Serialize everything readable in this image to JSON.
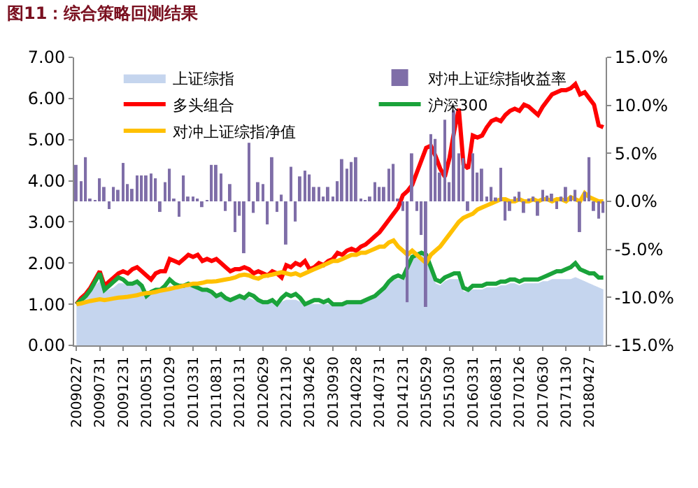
{
  "chart_data": {
    "type": "line",
    "title": "图11：综合策略回测结果",
    "categories": [
      "20090227",
      null,
      null,
      null,
      null,
      "20090731",
      null,
      null,
      null,
      null,
      "20091231",
      null,
      null,
      null,
      null,
      "20100531",
      null,
      null,
      null,
      null,
      "20101029",
      null,
      null,
      null,
      null,
      "20110331",
      null,
      null,
      null,
      null,
      "20110831",
      null,
      null,
      null,
      null,
      "20120131",
      null,
      null,
      null,
      null,
      "20120629",
      null,
      null,
      null,
      null,
      "20121130",
      null,
      null,
      null,
      null,
      "20130426",
      null,
      null,
      null,
      null,
      "20130930",
      null,
      null,
      null,
      null,
      "20140228",
      null,
      null,
      null,
      null,
      "20140731",
      null,
      null,
      null,
      null,
      "20141231",
      null,
      null,
      null,
      null,
      "20150529",
      null,
      null,
      null,
      null,
      "20151030",
      null,
      null,
      null,
      null,
      "20160331",
      null,
      null,
      null,
      null,
      "20160831",
      null,
      null,
      null,
      null,
      "20170126",
      null,
      null,
      null,
      null,
      "20170630",
      null,
      null,
      null,
      null,
      "20171130",
      null,
      null,
      null,
      null,
      "20180427",
      null,
      null,
      null
    ],
    "series": [
      {
        "name": "上证综指",
        "type": "area",
        "color": "#c5d5ee",
        "values": [
          1.0,
          1.1,
          1.15,
          1.3,
          1.45,
          1.55,
          1.3,
          1.35,
          1.4,
          1.5,
          1.5,
          1.45,
          1.45,
          1.5,
          1.4,
          1.2,
          1.25,
          1.3,
          1.3,
          1.35,
          1.45,
          1.4,
          1.4,
          1.4,
          1.45,
          1.4,
          1.35,
          1.3,
          1.3,
          1.25,
          1.2,
          1.2,
          1.15,
          1.1,
          1.1,
          1.15,
          1.1,
          1.15,
          1.1,
          1.05,
          1.0,
          1.0,
          1.05,
          0.95,
          1.05,
          1.1,
          1.1,
          1.1,
          1.05,
          0.95,
          1.0,
          1.0,
          1.0,
          1.0,
          1.0,
          0.95,
          0.95,
          0.95,
          1.0,
          1.0,
          1.0,
          1.0,
          1.05,
          1.1,
          1.15,
          1.25,
          1.35,
          1.5,
          1.6,
          1.6,
          1.6,
          1.8,
          2.1,
          2.2,
          2.25,
          2.15,
          1.8,
          1.5,
          1.45,
          1.55,
          1.6,
          1.6,
          1.6,
          1.3,
          1.3,
          1.35,
          1.35,
          1.35,
          1.4,
          1.4,
          1.4,
          1.45,
          1.45,
          1.5,
          1.5,
          1.45,
          1.5,
          1.5,
          1.5,
          1.5,
          1.55,
          1.55,
          1.6,
          1.6,
          1.6,
          1.6,
          1.6,
          1.65,
          1.6,
          1.55,
          1.5,
          1.45,
          1.4,
          1.35
        ]
      },
      {
        "name": "对冲上证综指收益率",
        "type": "bar",
        "axis": "y2",
        "color": "#7f6ea8",
        "values": [
          3.8,
          2.1,
          4.6,
          0.2,
          0.1,
          2.4,
          1.5,
          -0.8,
          1.5,
          1.2,
          4.0,
          1.8,
          1.3,
          2.7,
          2.7,
          2.7,
          2.9,
          2.4,
          -1.1,
          2.0,
          3.4,
          0.2,
          -1.6,
          2.7,
          0.5,
          0.5,
          0.2,
          -0.6,
          0.1,
          3.8,
          3.8,
          2.9,
          -1.0,
          1.8,
          -3.2,
          -1.5,
          -5.4,
          6.1,
          -1.2,
          2.0,
          1.8,
          -2.4,
          4.6,
          -1.1,
          0.7,
          -4.5,
          3.6,
          -2.1,
          2.6,
          3.2,
          2.8,
          1.5,
          1.5,
          0.5,
          1.5,
          0.5,
          2.1,
          4.4,
          3.4,
          4.1,
          4.6,
          0.2,
          0.1,
          0.5,
          2.0,
          1.5,
          1.5,
          3.4,
          3.9,
          0.2,
          -1.0,
          -10.5,
          5.0,
          -1.0,
          -3.5,
          -11.0,
          7.0,
          6.5,
          3.0,
          8.5,
          2.0,
          9.5,
          5.0,
          4.5,
          -1.0,
          5.0,
          3.0,
          3.4,
          0.5,
          1.5,
          0.4,
          3.5,
          -2.0,
          -1.0,
          0.5,
          1.0,
          -1.2,
          0.3,
          0.5,
          -1.5,
          1.2,
          0.6,
          0.8,
          -0.8,
          0.5,
          1.5,
          0.6,
          1.2,
          -3.2,
          1.0,
          4.6,
          -1.0,
          -1.8,
          -1.2
        ]
      },
      {
        "name": "多头组合",
        "color": "#ff0000",
        "values": [
          1.0,
          1.15,
          1.25,
          1.4,
          1.6,
          1.8,
          1.45,
          1.55,
          1.65,
          1.75,
          1.8,
          1.75,
          1.85,
          1.9,
          1.8,
          1.7,
          1.6,
          1.75,
          1.8,
          1.8,
          2.1,
          2.05,
          2.0,
          2.1,
          2.2,
          2.15,
          2.2,
          2.05,
          2.1,
          2.05,
          2.1,
          2.0,
          1.9,
          1.8,
          1.85,
          1.85,
          1.9,
          1.85,
          1.75,
          1.8,
          1.75,
          1.7,
          1.8,
          1.75,
          1.65,
          1.95,
          1.9,
          2.0,
          1.95,
          2.05,
          1.85,
          1.9,
          2.0,
          1.95,
          2.05,
          2.1,
          2.25,
          2.2,
          2.3,
          2.35,
          2.3,
          2.4,
          2.45,
          2.55,
          2.65,
          2.75,
          2.9,
          3.05,
          3.2,
          3.35,
          3.65,
          3.75,
          3.9,
          4.2,
          4.5,
          4.8,
          4.85,
          4.6,
          4.3,
          4.1,
          4.55,
          5.2,
          5.75,
          4.4,
          4.3,
          5.1,
          5.05,
          5.1,
          5.3,
          5.45,
          5.5,
          5.45,
          5.6,
          5.7,
          5.75,
          5.7,
          5.85,
          5.8,
          5.7,
          5.6,
          5.8,
          5.95,
          6.1,
          6.15,
          6.2,
          6.2,
          6.25,
          6.35,
          6.1,
          6.15,
          6.0,
          5.85,
          5.35,
          5.3
        ]
      },
      {
        "name": "沪深300",
        "color": "#1aa33a",
        "values": [
          1.0,
          1.1,
          1.2,
          1.35,
          1.55,
          1.75,
          1.35,
          1.45,
          1.55,
          1.65,
          1.6,
          1.5,
          1.5,
          1.55,
          1.45,
          1.2,
          1.3,
          1.35,
          1.35,
          1.45,
          1.6,
          1.5,
          1.45,
          1.45,
          1.5,
          1.45,
          1.4,
          1.35,
          1.35,
          1.3,
          1.2,
          1.25,
          1.15,
          1.1,
          1.15,
          1.2,
          1.15,
          1.25,
          1.2,
          1.1,
          1.05,
          1.05,
          1.1,
          1.0,
          1.15,
          1.25,
          1.2,
          1.25,
          1.15,
          1.0,
          1.05,
          1.1,
          1.1,
          1.05,
          1.1,
          1.0,
          1.0,
          1.0,
          1.05,
          1.05,
          1.05,
          1.05,
          1.1,
          1.15,
          1.2,
          1.3,
          1.4,
          1.55,
          1.65,
          1.7,
          1.65,
          1.9,
          2.15,
          2.2,
          2.25,
          2.2,
          1.9,
          1.6,
          1.55,
          1.65,
          1.7,
          1.75,
          1.75,
          1.4,
          1.35,
          1.45,
          1.45,
          1.45,
          1.5,
          1.5,
          1.5,
          1.55,
          1.55,
          1.6,
          1.6,
          1.55,
          1.6,
          1.6,
          1.6,
          1.6,
          1.65,
          1.7,
          1.75,
          1.8,
          1.8,
          1.85,
          1.9,
          2.0,
          1.85,
          1.8,
          1.75,
          1.75,
          1.65,
          1.65
        ]
      },
      {
        "name": "对冲上证综指净值",
        "color": "#ffc000",
        "values": [
          1.0,
          1.02,
          1.05,
          1.08,
          1.1,
          1.12,
          1.1,
          1.12,
          1.14,
          1.16,
          1.17,
          1.18,
          1.2,
          1.22,
          1.25,
          1.27,
          1.28,
          1.3,
          1.33,
          1.35,
          1.37,
          1.4,
          1.42,
          1.45,
          1.47,
          1.5,
          1.5,
          1.52,
          1.55,
          1.55,
          1.56,
          1.58,
          1.6,
          1.62,
          1.65,
          1.7,
          1.72,
          1.7,
          1.65,
          1.62,
          1.68,
          1.7,
          1.72,
          1.75,
          1.78,
          1.75,
          1.72,
          1.75,
          1.7,
          1.75,
          1.8,
          1.85,
          1.9,
          1.95,
          2.0,
          2.05,
          2.05,
          2.1,
          2.15,
          2.2,
          2.2,
          2.25,
          2.25,
          2.3,
          2.35,
          2.4,
          2.4,
          2.5,
          2.55,
          2.4,
          2.3,
          2.2,
          2.3,
          2.2,
          2.1,
          2.0,
          2.2,
          2.3,
          2.4,
          2.55,
          2.7,
          2.85,
          3.0,
          3.1,
          3.15,
          3.2,
          3.3,
          3.35,
          3.4,
          3.45,
          3.5,
          3.55,
          3.55,
          3.5,
          3.5,
          3.55,
          3.5,
          3.5,
          3.55,
          3.5,
          3.55,
          3.55,
          3.5,
          3.55,
          3.55,
          3.5,
          3.6,
          3.55,
          3.5,
          3.7,
          3.6,
          3.55,
          3.5,
          3.5
        ]
      }
    ],
    "ylim": [
      0,
      7
    ],
    "yticks": [
      {
        "value": 0,
        "label": "0.00"
      },
      {
        "value": 1,
        "label": "1.00"
      },
      {
        "value": 2,
        "label": "2.00"
      },
      {
        "value": 3,
        "label": "3.00"
      },
      {
        "value": 4,
        "label": "4.00"
      },
      {
        "value": 5,
        "label": "5.00"
      },
      {
        "value": 6,
        "label": "6.00"
      },
      {
        "value": 7,
        "label": "7.00"
      }
    ],
    "y2lim": [
      -15,
      15
    ],
    "y2ticks": [
      {
        "value": -15,
        "label": "-15.0%"
      },
      {
        "value": -10,
        "label": "-10.0%"
      },
      {
        "value": -5,
        "label": "-5.0%"
      },
      {
        "value": 0,
        "label": "0.0%"
      },
      {
        "value": 5,
        "label": "5.0%"
      },
      {
        "value": 10,
        "label": "10.0%"
      },
      {
        "value": 15,
        "label": "15.0%"
      }
    ],
    "legend": "top",
    "grid": false
  }
}
